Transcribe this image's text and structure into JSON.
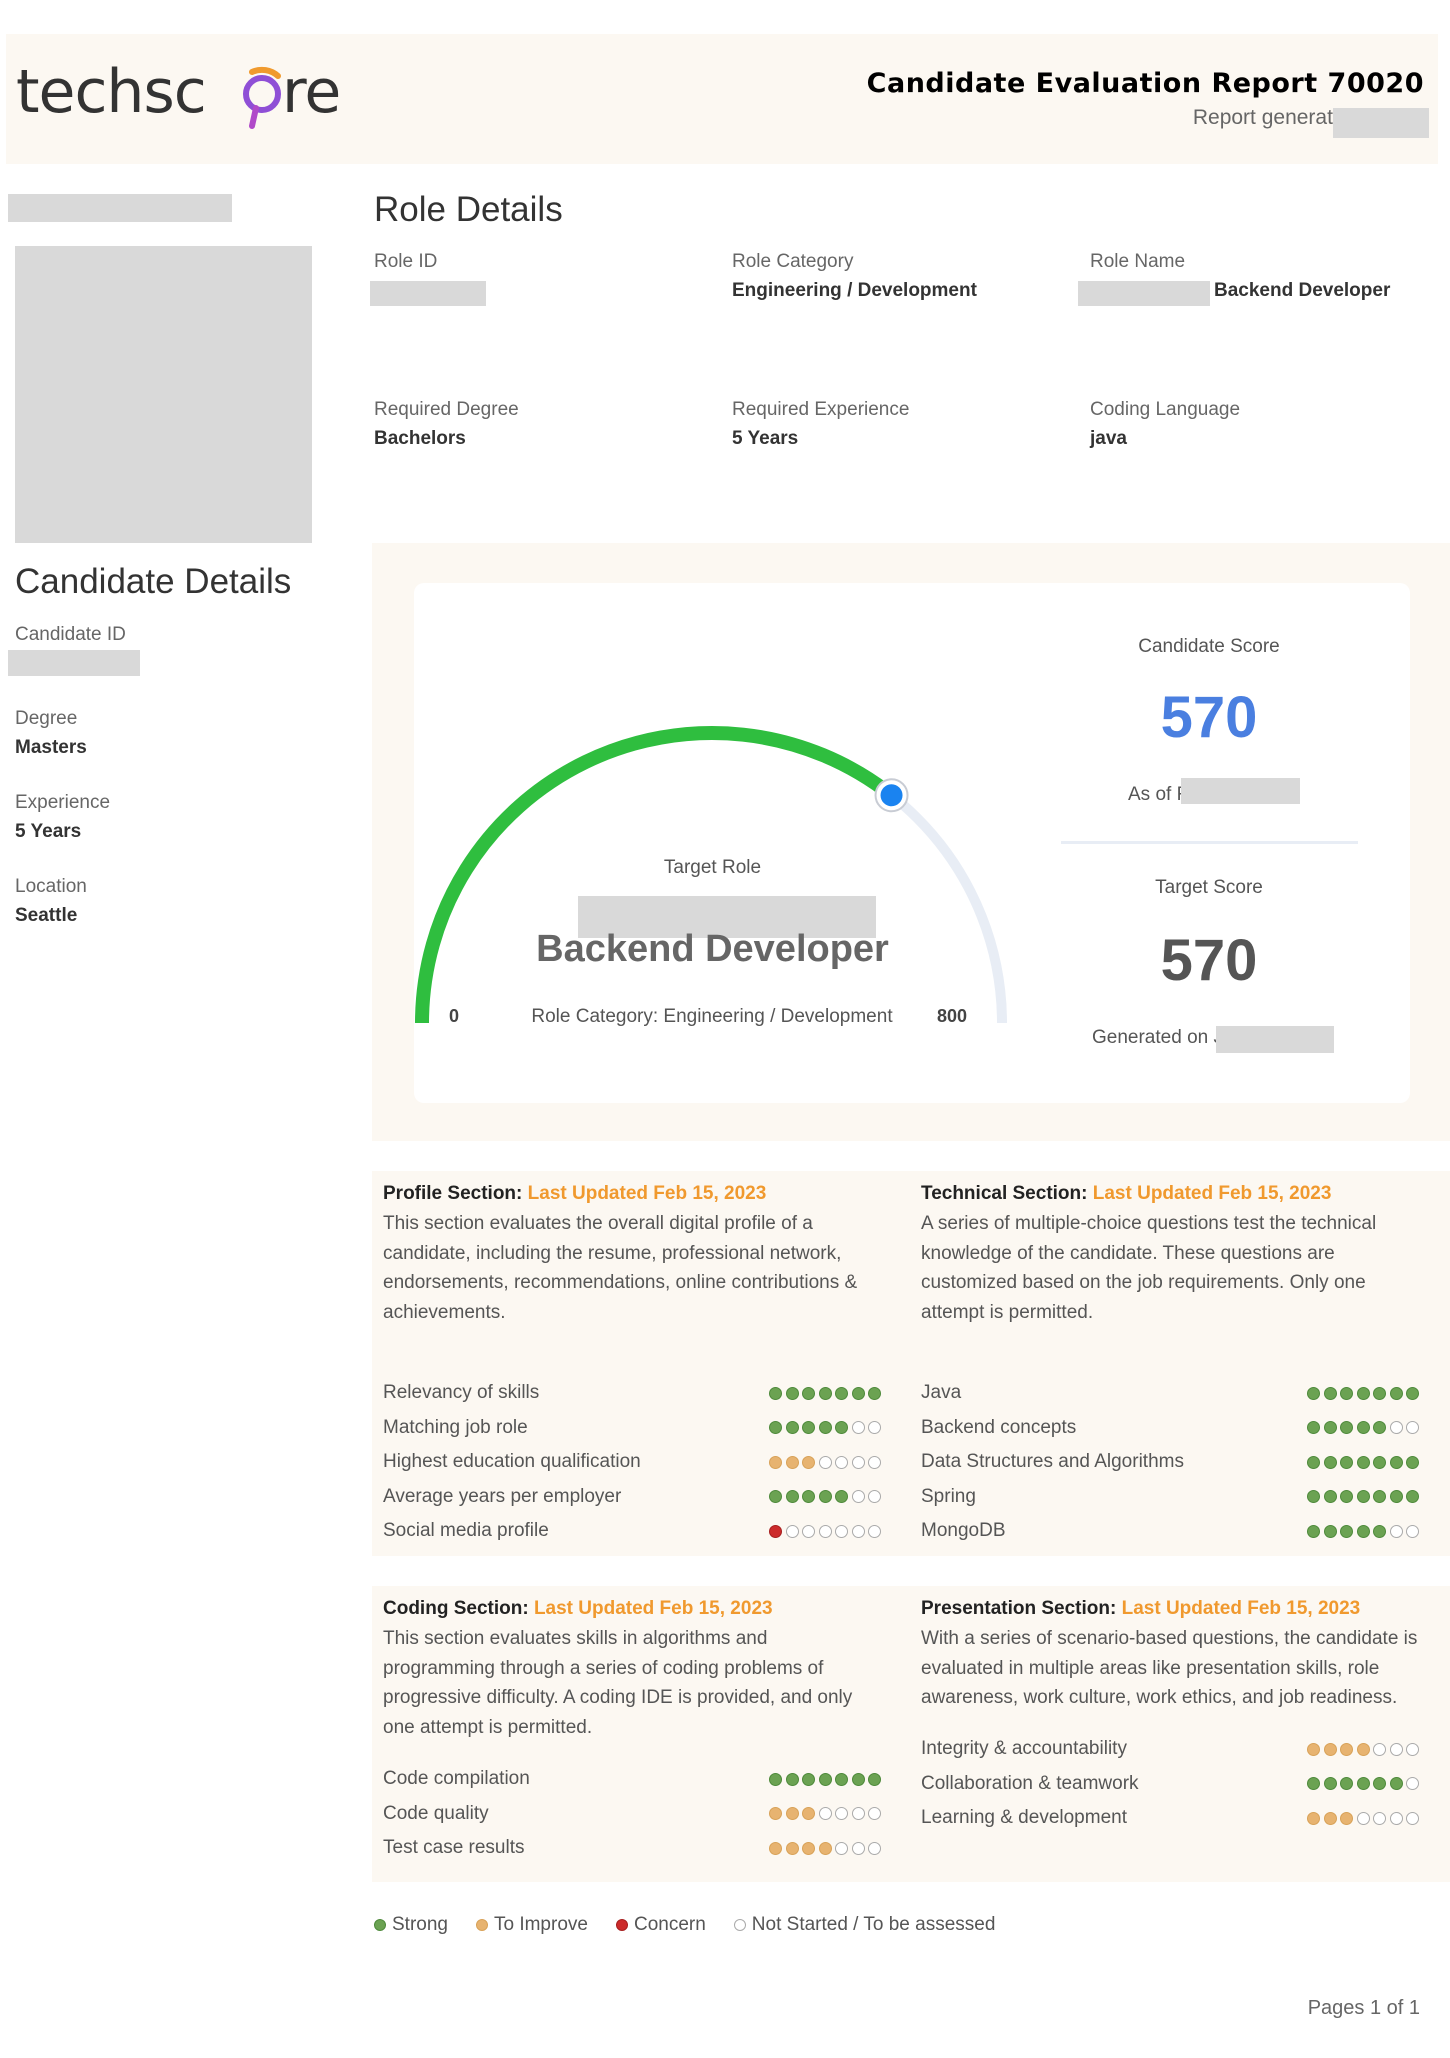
{
  "header": {
    "logo_text": "techscore",
    "report_title": "Candidate Evaluation Report 70020",
    "report_generated": "Report generated on Oct"
  },
  "role": {
    "heading": "Role Details",
    "fields": [
      {
        "label": "Role ID",
        "value": ""
      },
      {
        "label": "Role Category",
        "value": "Engineering / Development"
      },
      {
        "label": "Role Name",
        "value": "Backend Developer"
      },
      {
        "label": "Required Degree",
        "value": "Bachelors"
      },
      {
        "label": "Required Experience",
        "value": "5 Years"
      },
      {
        "label": "Coding Language",
        "value": "java"
      }
    ]
  },
  "candidate": {
    "heading": "Candidate Details",
    "fields": [
      {
        "label": "Candidate ID",
        "value": ""
      },
      {
        "label": "Degree",
        "value": "Masters"
      },
      {
        "label": "Experience",
        "value": "5 Years"
      },
      {
        "label": "Location",
        "value": "Seattle"
      }
    ]
  },
  "gauge": {
    "min_label": "0",
    "max_label": "800",
    "min": 0,
    "max": 800,
    "value": 570,
    "target_role_label": "Target Role",
    "target_role": "Backend Developer",
    "role_category": "Role Category: Engineering / Development",
    "fill_color": "#2fbe3f",
    "track_color": "#e8edf5",
    "marker_color": "#1a83f0"
  },
  "scores": {
    "candidate_label": "Candidate Score",
    "candidate_value": "570",
    "candidate_color": "#4a7fe0",
    "as_of": "As of F",
    "target_label": "Target Score",
    "target_value": "570",
    "target_color": "#555555",
    "generated_on": "Generated on J"
  },
  "sections": {
    "profile": {
      "title": "Profile Section:",
      "updated": "Last Updated Feb 15, 2023",
      "desc": [
        "This section evaluates the overall digital profile of a",
        "candidate, including the resume, professional network,",
        "endorsements, recommendations, online contributions &",
        "achievements."
      ],
      "items": [
        {
          "label": "Relevancy of skills",
          "dots": "sssssss"
        },
        {
          "label": "Matching job role",
          "dots": "sssssnn"
        },
        {
          "label": "Highest education qualification",
          "dots": "iiinnnn"
        },
        {
          "label": "Average years per employer",
          "dots": "sssssnn"
        },
        {
          "label": "Social media profile",
          "dots": "cnnnnnn"
        }
      ]
    },
    "technical": {
      "title": "Technical Section:",
      "updated": "Last Updated Feb 15, 2023",
      "desc": [
        "A series of multiple-choice questions test the technical",
        "knowledge of the candidate. These questions are",
        "customized based on the job requirements. Only one",
        "attempt is permitted."
      ],
      "items": [
        {
          "label": "Java",
          "dots": "sssssss"
        },
        {
          "label": "Backend concepts",
          "dots": "sssssnn"
        },
        {
          "label": "Data Structures and Algorithms",
          "dots": "sssssss"
        },
        {
          "label": "Spring",
          "dots": "sssssss"
        },
        {
          "label": "MongoDB",
          "dots": "sssssnn"
        }
      ]
    },
    "coding": {
      "title": "Coding Section:",
      "updated": "Last Updated Feb 15, 2023",
      "desc": [
        "This section evaluates skills in algorithms and",
        "programming through a series of coding problems of",
        "progressive difficulty. A coding IDE is provided, and only",
        "one attempt is permitted."
      ],
      "items": [
        {
          "label": "Code compilation",
          "dots": "sssssss"
        },
        {
          "label": "Code quality",
          "dots": "iiinnnn"
        },
        {
          "label": "Test case results",
          "dots": "iiiinnn"
        }
      ]
    },
    "presentation": {
      "title": "Presentation Section:",
      "updated": "Last Updated Feb 15, 2023",
      "desc": [
        "With a series of scenario-based questions, the candidate is",
        "evaluated in multiple areas like presentation skills, role",
        "awareness, work culture, work ethics, and job readiness."
      ],
      "items": [
        {
          "label": "Integrity & accountability",
          "dots": "iiiinnn"
        },
        {
          "label": "Collaboration & teamwork",
          "dots": "ssssssn"
        },
        {
          "label": "Learning & development",
          "dots": "iiinnnn"
        }
      ]
    }
  },
  "legend": [
    {
      "kind": "s",
      "label": "Strong"
    },
    {
      "kind": "i",
      "label": "To Improve"
    },
    {
      "kind": "c",
      "label": "Concern"
    },
    {
      "kind": "n",
      "label": "Not Started / To be assessed"
    }
  ],
  "footer": {
    "pages": "Pages 1 of 1"
  }
}
